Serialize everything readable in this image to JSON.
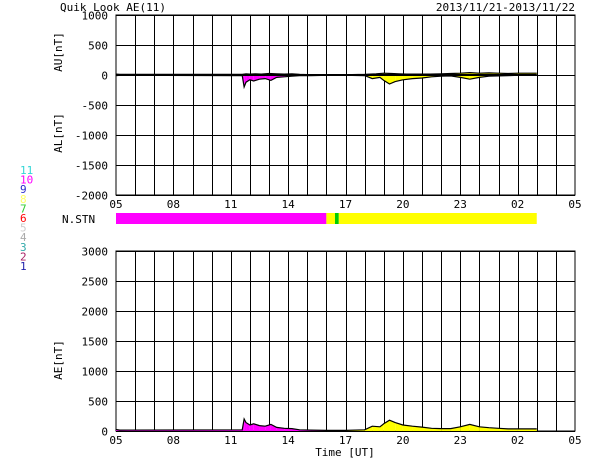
{
  "header": {
    "title": "Quik Look AE(11)",
    "date_range": "2013/11/21-2013/11/22"
  },
  "station_legend": {
    "items": [
      {
        "label": "11",
        "color": "#33d6d6"
      },
      {
        "label": "10",
        "color": "#ff00ff"
      },
      {
        "label": "9",
        "color": "#2a2acc"
      },
      {
        "label": "8",
        "color": "#ffff66"
      },
      {
        "label": "7",
        "color": "#33cc33"
      },
      {
        "label": "6",
        "color": "#ff0000"
      },
      {
        "label": "5",
        "color": "#cccccc"
      },
      {
        "label": "4",
        "color": "#aaaaaa"
      },
      {
        "label": "3",
        "color": "#33aaaa"
      },
      {
        "label": "2",
        "color": "#aa2266"
      },
      {
        "label": "1",
        "color": "#2222aa"
      }
    ]
  },
  "chart_data": [
    {
      "type": "line",
      "panel": "AU/AL",
      "ylabel_upper": "AU[nT]",
      "ylabel_lower": "AL[nT]",
      "ylim": [
        -2000,
        1000
      ],
      "yticks": [
        1000,
        500,
        0,
        -500,
        -1000,
        -1500,
        -2000
      ],
      "xlim_hours": [
        5,
        29
      ],
      "xticks": [
        "05",
        "08",
        "11",
        "14",
        "17",
        "20",
        "23",
        "02",
        "05"
      ],
      "grid": true,
      "series": [
        {
          "x_hours": [
            5.0,
            5.2,
            11.6,
            11.8,
            12.0,
            12.3,
            12.6,
            13.0,
            13.4,
            13.8,
            14.2,
            14.6,
            15.2,
            16.0,
            17.0,
            18.0,
            18.6,
            19.0,
            19.4,
            19.8,
            20.2,
            20.8,
            21.4,
            22.0,
            22.5,
            23.0,
            23.5,
            24.0,
            24.5,
            25.0,
            25.5,
            26.0,
            27.0
          ],
          "values": [
            15,
            10,
            10,
            20,
            15,
            20,
            15,
            25,
            20,
            15,
            20,
            10,
            5,
            5,
            5,
            10,
            20,
            30,
            25,
            20,
            15,
            15,
            15,
            20,
            25,
            30,
            40,
            30,
            35,
            30,
            25,
            30,
            30
          ]
        },
        {
          "x_hours": [
            5.0,
            5.2,
            11.6,
            11.7,
            11.8,
            12.0,
            12.2,
            12.5,
            12.8,
            13.1,
            13.4,
            13.8,
            14.2,
            14.6,
            15.2,
            16.0,
            17.0,
            18.0,
            18.4,
            18.8,
            19.0,
            19.3,
            19.6,
            20.0,
            20.5,
            21.0,
            21.5,
            22.0,
            22.5,
            23.0,
            23.5,
            24.0,
            24.5,
            25.0,
            25.5,
            26.0,
            27.0
          ],
          "values": [
            -10,
            -5,
            -10,
            -200,
            -120,
            -80,
            -100,
            -70,
            -60,
            -90,
            -40,
            -30,
            -20,
            -10,
            -10,
            -5,
            -5,
            -10,
            -60,
            -40,
            -90,
            -150,
            -110,
            -80,
            -60,
            -50,
            -30,
            -20,
            -15,
            -40,
            -70,
            -40,
            -20,
            -15,
            -10,
            -5,
            -5
          ]
        }
      ]
    },
    {
      "type": "bar",
      "panel": "N.STN",
      "label": "N.STN",
      "segments": [
        {
          "x_start": 5.0,
          "x_end": 16.0,
          "color": "#ff00ff"
        },
        {
          "x_start": 16.0,
          "x_end": 16.45,
          "color": "#ffff00"
        },
        {
          "x_start": 16.45,
          "x_end": 16.65,
          "color": "#00cc00"
        },
        {
          "x_start": 16.65,
          "x_end": 27.0,
          "color": "#ffff00"
        }
      ]
    },
    {
      "type": "area",
      "panel": "AE",
      "ylabel": "AE[nT]",
      "xlabel": "Time [UT]",
      "ylim": [
        0,
        3000
      ],
      "yticks": [
        3000,
        2500,
        2000,
        1500,
        1000,
        500,
        0
      ],
      "xlim_hours": [
        5,
        29
      ],
      "xticks": [
        "05",
        "08",
        "11",
        "14",
        "17",
        "20",
        "23",
        "02",
        "05"
      ],
      "grid": true,
      "x_hours": [
        5.0,
        5.2,
        11.6,
        11.7,
        11.8,
        12.0,
        12.2,
        12.5,
        12.8,
        13.1,
        13.4,
        13.8,
        14.2,
        14.6,
        15.2,
        16.0,
        17.0,
        18.0,
        18.4,
        18.8,
        19.0,
        19.3,
        19.6,
        20.0,
        20.5,
        21.0,
        21.5,
        22.0,
        22.5,
        23.0,
        23.5,
        24.0,
        24.5,
        25.0,
        25.5,
        26.0,
        27.0
      ],
      "values": [
        25,
        15,
        20,
        200,
        140,
        100,
        120,
        90,
        80,
        110,
        60,
        45,
        40,
        20,
        15,
        10,
        10,
        20,
        80,
        70,
        120,
        180,
        140,
        100,
        80,
        65,
        45,
        40,
        40,
        70,
        110,
        70,
        55,
        45,
        35,
        35,
        35
      ]
    }
  ]
}
